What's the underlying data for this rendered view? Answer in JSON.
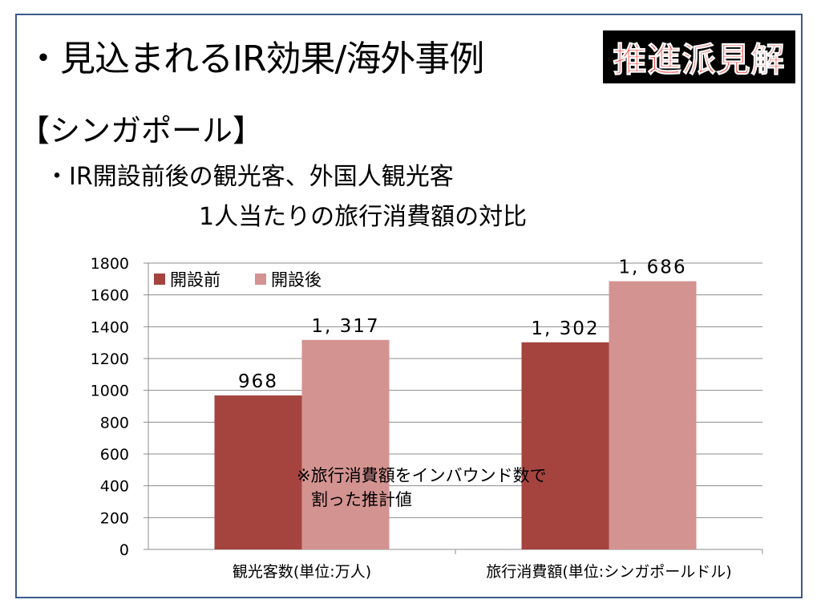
{
  "slide": {
    "title": "・見込まれるIR効果/海外事例",
    "badge": "推進派見解",
    "subtitle": "【シンガポール】",
    "heading_line1": "・IR開設前後の観光客、外国人観光客",
    "heading_line2": "1人当たりの旅行消費額の対比",
    "note_line1": "※旅行消費額をインバウンド数で",
    "note_line2": "割った推計値"
  },
  "chart_data": {
    "type": "bar",
    "categories": [
      "観光客数(単位:万人)",
      "旅行消費額(単位:シンガポールドル)"
    ],
    "series": [
      {
        "name": "開設前",
        "values": [
          968,
          1302
        ],
        "labels": [
          "968",
          "1, 302"
        ],
        "color": "#a5443f"
      },
      {
        "name": "開設後",
        "values": [
          1317,
          1686
        ],
        "labels": [
          "1, 317",
          "1, 686"
        ],
        "color": "#d39391"
      }
    ],
    "ylim": [
      0,
      1800
    ],
    "yticks": [
      0,
      200,
      400,
      600,
      800,
      1000,
      1200,
      1400,
      1600,
      1800
    ],
    "grid": true,
    "legend": "top-left"
  }
}
